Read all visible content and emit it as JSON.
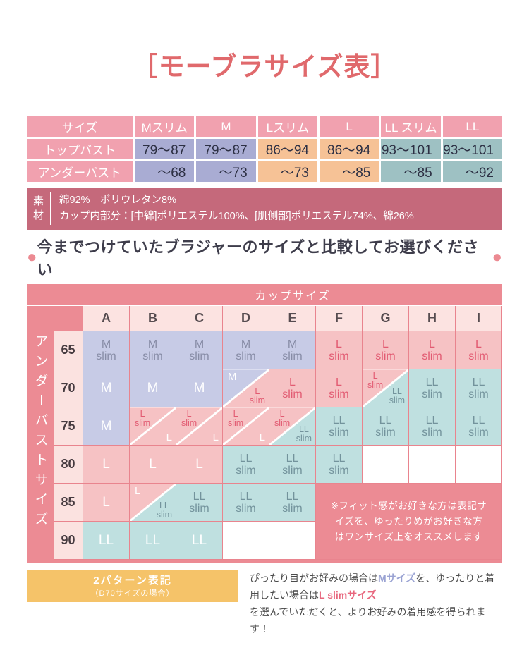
{
  "title": "［モーブラサイズ表］",
  "size_table": {
    "header": [
      "サイズ",
      "Mスリム",
      "M",
      "Lスリム",
      "L",
      "LL スリム",
      "LL"
    ],
    "col_colors": [
      "c-purple",
      "c-purple",
      "c-orange",
      "c-orange",
      "c-teal",
      "c-teal"
    ],
    "rows": [
      {
        "label": "トップバスト",
        "values": [
          "79～87",
          "79～87",
          "86～94",
          "86～94",
          "93～101",
          "93～101"
        ]
      },
      {
        "label": "アンダーバスト",
        "values": [
          "～68",
          "～73",
          "～73",
          "～85",
          "～85",
          "～92"
        ]
      }
    ]
  },
  "material": {
    "label": "素\n材",
    "line1": "綿92%　ポリウレタン8%",
    "line2": "カップ内部分：[中綿]ポリエステル100%、[肌側部]ポリエステル74%、綿26%"
  },
  "headline": {
    "circle": "●",
    "text": "今までつけていたブラジャーのサイズと比較してお選びください"
  },
  "matrix": {
    "band_label": "カップサイズ",
    "side_label": "アンダーバストサイズ",
    "columns": [
      "A",
      "B",
      "C",
      "D",
      "E",
      "F",
      "G",
      "H",
      "I"
    ],
    "note": "※フィット感がお好きな方は表記サ\nイズを、ゆったりめがお好きな方\nはワンサイズ上をオススメします",
    "cell_bg": {
      "mslim": "#c7cbe6",
      "m": "#c7cbe6",
      "lslim": "#f6c2c4",
      "l": "#f6c2c4",
      "llslim": "#bfe0e0",
      "ll": "#bfe0e0"
    },
    "cell_fg": {
      "mslim": "#878ca6",
      "m": "#ffffff",
      "lslim": "#e25b72",
      "l": "#ffffff",
      "llslim": "#73939c",
      "ll": "#ffffff"
    },
    "rows": [
      {
        "label": "65",
        "cells": [
          {
            "s": "mslim",
            "text": "M\nslim"
          },
          {
            "s": "mslim",
            "text": "M\nslim"
          },
          {
            "s": "mslim",
            "text": "M\nslim"
          },
          {
            "s": "mslim",
            "text": "M\nslim"
          },
          {
            "s": "mslim",
            "text": "M\nslim"
          },
          {
            "s": "lslim",
            "text": "L\nslim"
          },
          {
            "s": "lslim",
            "text": "L\nslim"
          },
          {
            "s": "lslim",
            "text": "L\nslim"
          },
          {
            "s": "lslim",
            "text": "L\nslim"
          }
        ]
      },
      {
        "label": "70",
        "cells": [
          {
            "s": "m",
            "text": "M"
          },
          {
            "s": "m",
            "text": "M"
          },
          {
            "s": "m",
            "text": "M"
          },
          {
            "d": 1,
            "tl": {
              "s": "m",
              "text": "M"
            },
            "br": {
              "s": "lslim",
              "text": "L\nslim"
            }
          },
          {
            "s": "lslim",
            "text": "L\nslim"
          },
          {
            "s": "lslim",
            "text": "L\nslim"
          },
          {
            "d": 1,
            "tl": {
              "s": "lslim",
              "text": "L\nslim"
            },
            "br": {
              "s": "llslim",
              "text": "LL\nslim"
            }
          },
          {
            "s": "llslim",
            "text": "LL\nslim"
          },
          {
            "s": "llslim",
            "text": "LL\nslim"
          }
        ]
      },
      {
        "label": "75",
        "cells": [
          {
            "s": "m",
            "text": "M"
          },
          {
            "d": 1,
            "tl": {
              "s": "lslim",
              "text": "L\nslim"
            },
            "br": {
              "s": "l",
              "text": "L"
            }
          },
          {
            "d": 1,
            "tl": {
              "s": "lslim",
              "text": "L\nslim"
            },
            "br": {
              "s": "l",
              "text": "L"
            }
          },
          {
            "d": 1,
            "tl": {
              "s": "lslim",
              "text": "L\nslim"
            },
            "br": {
              "s": "l",
              "text": "L"
            }
          },
          {
            "d": 1,
            "tl": {
              "s": "lslim",
              "text": "L\nslim"
            },
            "br": {
              "s": "llslim",
              "text": "LL\nslim"
            }
          },
          {
            "s": "llslim",
            "text": "LL\nslim"
          },
          {
            "s": "llslim",
            "text": "LL\nslim"
          },
          {
            "s": "llslim",
            "text": "LL\nslim"
          },
          {
            "s": "llslim",
            "text": "LL\nslim"
          }
        ]
      },
      {
        "label": "80",
        "cells": [
          {
            "s": "l",
            "text": "L"
          },
          {
            "s": "l",
            "text": "L"
          },
          {
            "s": "l",
            "text": "L"
          },
          {
            "s": "llslim",
            "text": "LL\nslim"
          },
          {
            "s": "llslim",
            "text": "LL\nslim"
          },
          {
            "s": "llslim",
            "text": "LL\nslim"
          },
          {
            "s": "empty"
          },
          {
            "s": "empty"
          },
          {
            "s": "empty"
          }
        ]
      },
      {
        "label": "85",
        "cells": [
          {
            "s": "l",
            "text": "L"
          },
          {
            "d": 1,
            "tl": {
              "s": "l",
              "text": "L"
            },
            "br": {
              "s": "llslim",
              "text": "LL\nslim"
            }
          },
          {
            "s": "llslim",
            "text": "LL\nslim"
          },
          {
            "s": "llslim",
            "text": "LL\nslim"
          },
          {
            "s": "llslim",
            "text": "LL\nslim"
          },
          {
            "note": 1
          }
        ]
      },
      {
        "label": "90",
        "cells": [
          {
            "s": "ll",
            "text": "LL"
          },
          {
            "s": "ll",
            "text": "LL"
          },
          {
            "s": "ll",
            "text": "LL"
          },
          {
            "s": "empty"
          },
          {
            "s": "empty"
          }
        ]
      }
    ]
  },
  "legend": {
    "badge_title": "2パターン表記",
    "badge_sub": "（D70サイズの場合）",
    "text_parts": [
      {
        "text": "ぴったり目がお好みの場合は"
      },
      {
        "text": "Mサイズ",
        "style": "lt-m"
      },
      {
        "text": "を、ゆったりと着用したい場合は"
      },
      {
        "text": "L slimサイズ",
        "style": "lt-lslim",
        "br": true
      },
      {
        "text": "を選んでいただくと、よりお好みの着用感を得られます！"
      }
    ]
  },
  "colors": {
    "title_red": "#e0696c",
    "frame_pink": "#ec8b94",
    "table_header_pink": "#f1a1af",
    "table_purple": "#a9acd3",
    "table_orange": "#f6c296",
    "table_teal": "#9ec1c3",
    "material_rose": "#c5697b",
    "pastel_purple": "#c7cbe6",
    "pastel_pink": "#f6c2c4",
    "pastel_teal": "#bfe0e0",
    "badge_yellow": "#f5c369"
  }
}
